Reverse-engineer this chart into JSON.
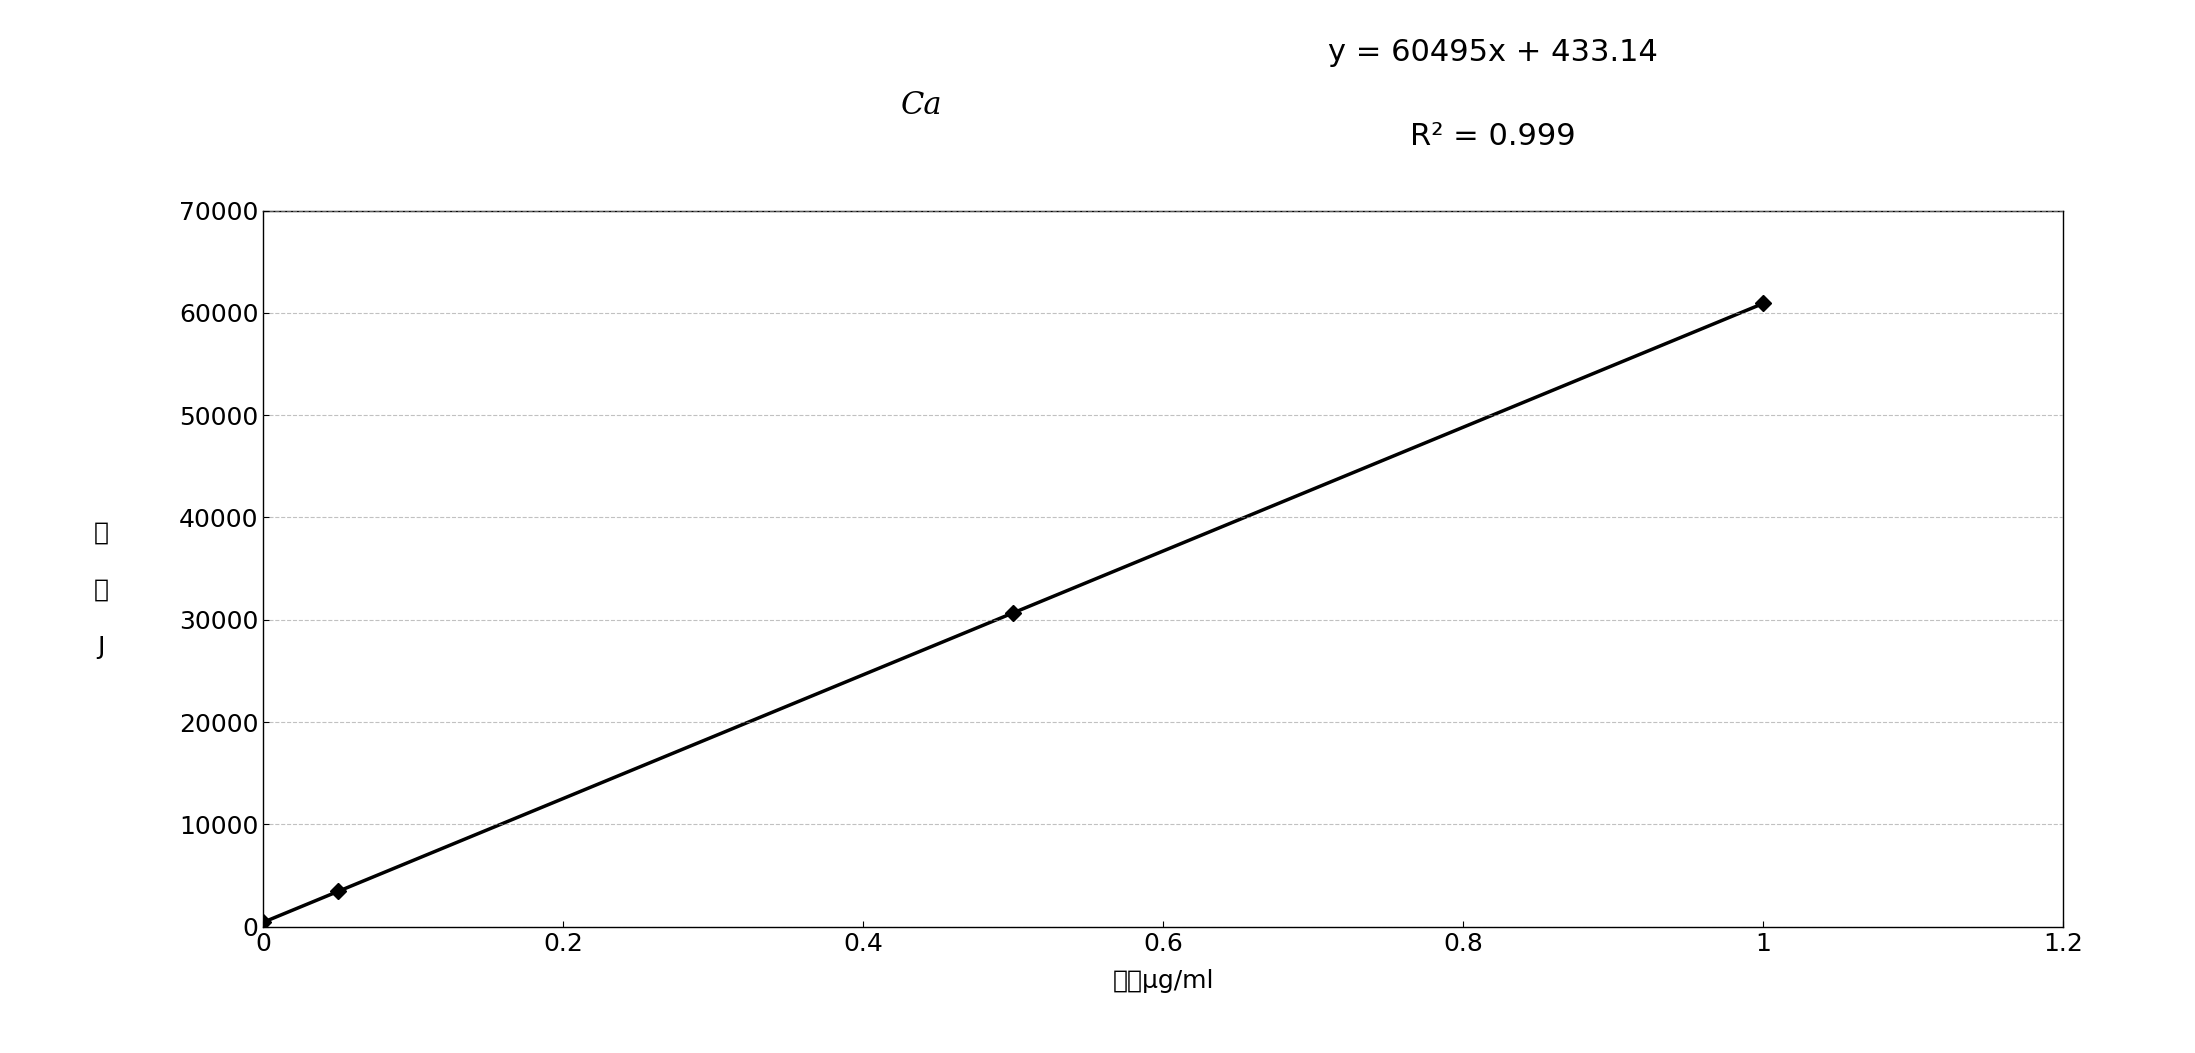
{
  "element": "Ca",
  "equation": "y = 60495x + 433.14",
  "r_squared": "R² = 0.999",
  "slope": 60495,
  "intercept": 433.14,
  "data_x": [
    0.0,
    0.05,
    0.5,
    1.0
  ],
  "data_y": [
    433.14,
    3481.0,
    30681.0,
    60928.0
  ],
  "xlabel": "浓度μg/ml",
  "ylabel_line1": "能",
  "ylabel_line2": "量",
  "ylabel_line3": "J",
  "xlim": [
    0,
    1.2
  ],
  "ylim": [
    0,
    70000
  ],
  "xticks": [
    0,
    0.2,
    0.4,
    0.6,
    0.8,
    1.0,
    1.2
  ],
  "yticks": [
    0,
    10000,
    20000,
    30000,
    40000,
    50000,
    60000,
    70000
  ],
  "line_color": "#000000",
  "marker": "D",
  "marker_size": 8,
  "marker_color": "#000000",
  "grid_color": "#999999",
  "grid_style": "--",
  "grid_alpha": 0.6,
  "grid_linewidth": 0.8,
  "background_color": "#ffffff",
  "title_fontsize": 22,
  "label_fontsize": 18,
  "tick_fontsize": 18,
  "equation_fontsize": 22,
  "line_width": 2.5,
  "fig_width": 21.95,
  "fig_height": 10.53,
  "fig_dpi": 100
}
